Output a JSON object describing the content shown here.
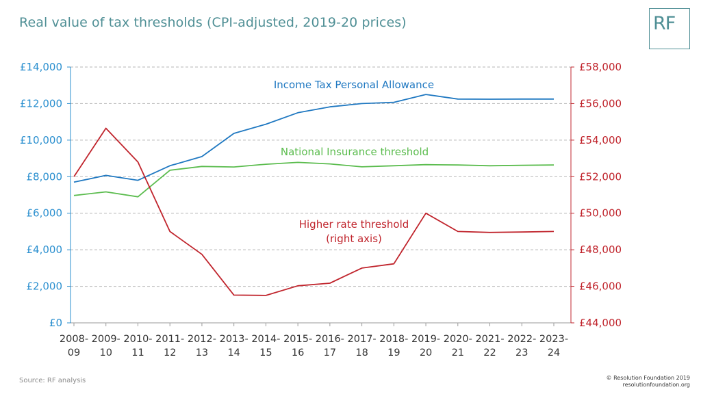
{
  "header": {
    "title": "Real value of tax thresholds (CPI-adjusted, 2019-20 prices)",
    "logo": "RF"
  },
  "footer": {
    "source": "Source: RF analysis",
    "copyright_line1": "© Resolution Foundation 2019",
    "copyright_line2": "resolutionfoundation.org"
  },
  "colors": {
    "title": "#4f8f95",
    "left_axis": "#2a8fcf",
    "right_axis": "#c0242c",
    "personal_allowance": "#1f78c1",
    "ni_threshold": "#5bbc4e",
    "higher_rate": "#c0242c",
    "grid": "#b5b5b5"
  },
  "chart_data": {
    "type": "line",
    "categories": [
      [
        "2008-",
        "09"
      ],
      [
        "2009-",
        "10"
      ],
      [
        "2010-",
        "11"
      ],
      [
        "2011-",
        "12"
      ],
      [
        "2012-",
        "13"
      ],
      [
        "2013-",
        "14"
      ],
      [
        "2014-",
        "15"
      ],
      [
        "2015-",
        "16"
      ],
      [
        "2016-",
        "17"
      ],
      [
        "2017-",
        "18"
      ],
      [
        "2018-",
        "19"
      ],
      [
        "2019-",
        "20"
      ],
      [
        "2020-",
        "21"
      ],
      [
        "2021-",
        "22"
      ],
      [
        "2022-",
        "23"
      ],
      [
        "2023-",
        "24"
      ]
    ],
    "left_axis": {
      "ylim": [
        0,
        14000
      ],
      "ticks": [
        0,
        2000,
        4000,
        6000,
        8000,
        10000,
        12000,
        14000
      ],
      "tick_labels": [
        "£0",
        "£2,000",
        "£4,000",
        "£6,000",
        "£8,000",
        "£10,000",
        "£12,000",
        "£14,000"
      ]
    },
    "right_axis": {
      "ylim": [
        44000,
        58000
      ],
      "ticks": [
        44000,
        46000,
        48000,
        50000,
        52000,
        54000,
        56000,
        58000
      ],
      "tick_labels": [
        "£44,000",
        "£46,000",
        "£48,000",
        "£50,000",
        "£52,000",
        "£54,000",
        "£56,000",
        "£58,000"
      ]
    },
    "grid": true,
    "series": [
      {
        "key": "personal_allowance",
        "name": "Income Tax Personal Allowance",
        "axis": "left",
        "label_lines": [
          "Income Tax Personal Allowance"
        ],
        "values": [
          7700,
          8070,
          7800,
          8600,
          9100,
          10370,
          10870,
          11500,
          11820,
          12000,
          12070,
          12500,
          12250,
          12240,
          12250,
          12250
        ]
      },
      {
        "key": "ni_threshold",
        "name": "National Insurance threshold",
        "axis": "left",
        "label_lines": [
          "National Insurance threshold"
        ],
        "values": [
          6970,
          7170,
          6900,
          8350,
          8560,
          8530,
          8680,
          8780,
          8700,
          8540,
          8600,
          8660,
          8640,
          8600,
          8620,
          8640
        ]
      },
      {
        "key": "higher_rate",
        "name": "Higher rate threshold",
        "axis": "right",
        "label_lines": [
          "Higher rate threshold",
          "(right axis)"
        ],
        "values": [
          52000,
          54650,
          52800,
          49000,
          47750,
          45520,
          45500,
          46030,
          46170,
          47000,
          47230,
          50000,
          49000,
          48950,
          48970,
          49000
        ]
      }
    ]
  }
}
